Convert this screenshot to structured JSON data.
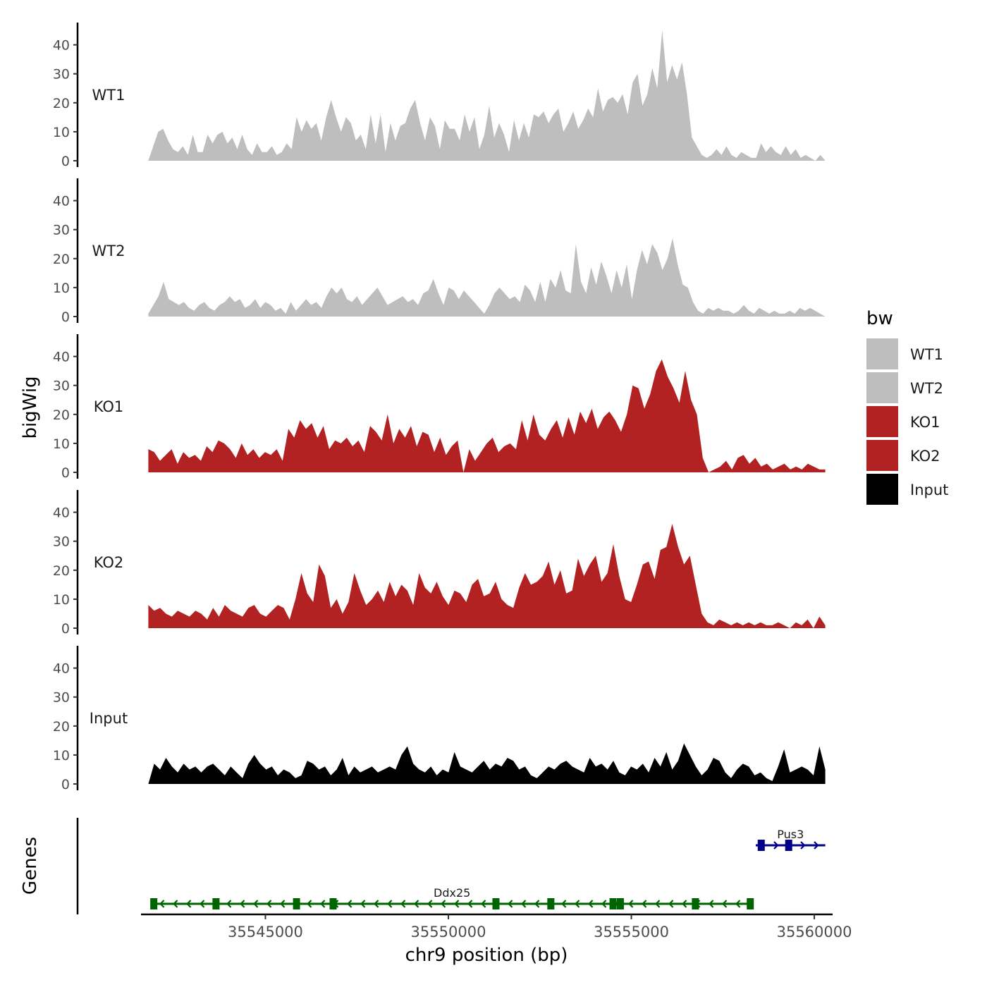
{
  "chart_data": [
    {
      "type": "area",
      "title": "",
      "ylabel": "bigWig",
      "xlabel": "chr9 position (bp)",
      "x_range": [
        35541600,
        35560500
      ],
      "ylim": [
        0,
        46
      ],
      "y_ticks": [
        0,
        10,
        20,
        30,
        40
      ],
      "x_ticks": [
        35545000,
        35550000,
        35555000,
        35560000
      ],
      "grid": false,
      "legend": {
        "title": "bw",
        "placement": "right",
        "entries": [
          {
            "label": "WT1",
            "color": "#bebebe"
          },
          {
            "label": "WT2",
            "color": "#bebebe"
          },
          {
            "label": "KO1",
            "color": "#b22222"
          },
          {
            "label": "KO2",
            "color": "#b22222"
          },
          {
            "label": "Input",
            "color": "#000000"
          }
        ]
      },
      "series": [
        {
          "name": "WT1",
          "color": "#bebebe",
          "x_start": 35541800,
          "x_end": 35560300,
          "anchors": [
            0,
            5,
            10,
            11,
            7,
            4,
            3,
            5,
            2,
            9,
            3,
            3,
            9,
            6,
            9,
            10,
            6,
            8,
            4,
            9,
            4,
            2,
            6,
            3,
            3,
            5,
            2,
            3,
            6,
            4,
            15,
            10,
            14,
            11,
            13,
            7,
            15,
            21,
            15,
            10,
            15,
            13,
            7,
            9,
            4,
            16,
            6,
            16,
            3,
            13,
            7,
            12,
            13,
            18,
            21,
            13,
            7,
            15,
            12,
            4,
            14,
            11,
            11,
            7,
            16,
            10,
            15,
            4,
            9,
            19,
            8,
            13,
            9,
            3,
            14,
            7,
            13,
            8,
            16,
            15,
            17,
            13,
            16,
            18,
            10,
            13,
            17,
            11,
            14,
            18,
            15,
            25,
            17,
            21,
            22,
            20,
            23,
            16,
            27,
            30,
            19,
            23,
            32,
            25,
            45,
            27,
            33,
            28,
            34,
            23,
            8,
            5,
            2,
            1,
            2,
            4,
            2,
            5,
            2,
            1,
            3,
            2,
            1,
            1,
            6,
            3,
            5,
            3,
            2,
            5,
            2,
            4,
            1,
            2,
            1,
            0,
            2,
            0
          ]
        },
        {
          "name": "WT2",
          "color": "#bebebe",
          "x_start": 35541800,
          "x_end": 35560300,
          "anchors": [
            1,
            4,
            7,
            12,
            6,
            5,
            4,
            5,
            3,
            2,
            4,
            5,
            3,
            2,
            4,
            5,
            7,
            5,
            6,
            3,
            4,
            6,
            3,
            5,
            4,
            2,
            3,
            1,
            5,
            2,
            4,
            6,
            4,
            5,
            3,
            7,
            10,
            8,
            10,
            6,
            5,
            7,
            4,
            6,
            8,
            10,
            7,
            4,
            5,
            6,
            7,
            5,
            6,
            4,
            8,
            9,
            13,
            8,
            4,
            10,
            9,
            6,
            9,
            7,
            5,
            3,
            1,
            4,
            8,
            10,
            8,
            6,
            7,
            5,
            11,
            9,
            5,
            12,
            5,
            13,
            10,
            16,
            9,
            8,
            25,
            12,
            8,
            17,
            11,
            19,
            14,
            8,
            16,
            10,
            18,
            6,
            16,
            23,
            18,
            25,
            22,
            16,
            20,
            27,
            18,
            11,
            10,
            5,
            2,
            1,
            3,
            2,
            3,
            2,
            2,
            1,
            2,
            4,
            2,
            1,
            3,
            2,
            1,
            2,
            1,
            1,
            2,
            1,
            3,
            2,
            3,
            2,
            1,
            0
          ]
        },
        {
          "name": "KO1",
          "color": "#b22222",
          "x_start": 35541800,
          "x_end": 35560300,
          "anchors": [
            8,
            7,
            4,
            6,
            8,
            3,
            7,
            5,
            6,
            4,
            9,
            7,
            11,
            10,
            8,
            5,
            10,
            6,
            8,
            5,
            7,
            6,
            8,
            4,
            15,
            12,
            18,
            15,
            17,
            12,
            16,
            8,
            11,
            10,
            12,
            9,
            11,
            7,
            16,
            14,
            11,
            20,
            10,
            15,
            12,
            16,
            9,
            14,
            13,
            7,
            12,
            6,
            9,
            11,
            0,
            8,
            4,
            7,
            10,
            12,
            7,
            9,
            10,
            8,
            18,
            11,
            20,
            13,
            11,
            15,
            18,
            12,
            19,
            13,
            21,
            17,
            22,
            15,
            19,
            21,
            18,
            14,
            20,
            30,
            29,
            22,
            27,
            35,
            39,
            33,
            29,
            24,
            35,
            25,
            20,
            5,
            0,
            1,
            2,
            4,
            1,
            5,
            6,
            3,
            5,
            2,
            3,
            1,
            2,
            3,
            1,
            2,
            1,
            3,
            2,
            1,
            1
          ]
        },
        {
          "name": "KO2",
          "color": "#b22222",
          "x_start": 35541800,
          "x_end": 35560300,
          "anchors": [
            8,
            6,
            7,
            5,
            4,
            6,
            5,
            4,
            6,
            5,
            3,
            7,
            4,
            8,
            6,
            5,
            4,
            7,
            8,
            5,
            4,
            6,
            8,
            7,
            3,
            10,
            19,
            12,
            9,
            22,
            18,
            7,
            10,
            5,
            9,
            19,
            13,
            8,
            10,
            13,
            9,
            16,
            11,
            15,
            13,
            8,
            19,
            14,
            12,
            16,
            11,
            8,
            13,
            12,
            9,
            15,
            17,
            11,
            12,
            16,
            10,
            8,
            7,
            14,
            19,
            15,
            16,
            18,
            23,
            15,
            20,
            12,
            13,
            24,
            18,
            22,
            25,
            16,
            19,
            29,
            18,
            10,
            9,
            15,
            22,
            23,
            17,
            27,
            28,
            36,
            28,
            22,
            25,
            15,
            5,
            2,
            1,
            3,
            2,
            1,
            2,
            1,
            2,
            1,
            2,
            1,
            1,
            2,
            1,
            0,
            2,
            1,
            3,
            0,
            4,
            1
          ]
        },
        {
          "name": "Input",
          "color": "#000000",
          "x_start": 35541800,
          "x_end": 35560300,
          "anchors": [
            0,
            7,
            5,
            9,
            6,
            4,
            7,
            5,
            6,
            4,
            6,
            7,
            5,
            3,
            6,
            4,
            2,
            7,
            10,
            7,
            5,
            6,
            3,
            5,
            4,
            2,
            3,
            8,
            7,
            5,
            6,
            3,
            5,
            9,
            3,
            6,
            4,
            5,
            6,
            4,
            5,
            6,
            5,
            10,
            13,
            7,
            5,
            4,
            6,
            3,
            5,
            4,
            11,
            6,
            5,
            4,
            6,
            8,
            5,
            7,
            6,
            9,
            8,
            5,
            6,
            3,
            2,
            4,
            6,
            5,
            7,
            8,
            6,
            5,
            4,
            9,
            6,
            7,
            5,
            8,
            4,
            3,
            6,
            5,
            7,
            4,
            9,
            6,
            11,
            5,
            8,
            14,
            10,
            6,
            3,
            5,
            9,
            8,
            4,
            2,
            5,
            7,
            6,
            3,
            4,
            2,
            1,
            6,
            12,
            4,
            5,
            6,
            5,
            3,
            13,
            5
          ]
        }
      ],
      "genes": {
        "ylabel": "Genes",
        "items": [
          {
            "name": "Ddx25",
            "strand": "-",
            "color": "#006400",
            "start": 35541900,
            "end": 35558300,
            "exons": [
              35541950,
              35543650,
              35545850,
              35546850,
              35551300,
              35552800,
              35554500,
              35554700,
              35556750,
              35558250
            ]
          },
          {
            "name": "Pus3",
            "strand": "+",
            "color": "#00008b",
            "start": 35558400,
            "end": 35560300,
            "exons": [
              35558550,
              35559300
            ]
          }
        ]
      }
    }
  ]
}
